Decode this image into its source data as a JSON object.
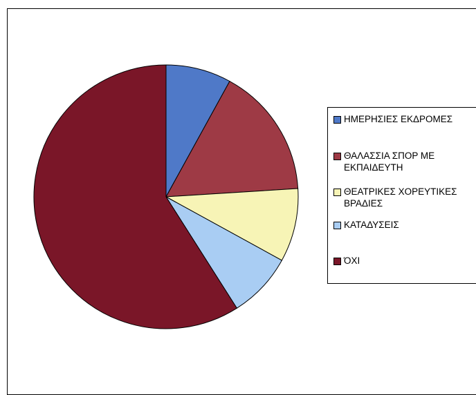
{
  "chart_data": {
    "type": "pie",
    "title": "",
    "legend_position": "right",
    "start_angle": "12 o'clock",
    "direction": "clockwise",
    "slices": [
      {
        "label": "ΗΜΕΡΗΣΙΕΣ ΕΚΔΡΟΜΕΣ",
        "value": 8,
        "color": "#4f79c8"
      },
      {
        "label": "ΘΑΛΑΣΣΙΑ ΣΠΟΡ ΜΕ ΕΚΠΑΙΔΕΥΤΗ",
        "value": 16,
        "color": "#9e3a45"
      },
      {
        "label": "ΘΕΑΤΡΙΚΕΣ ΧΟΡΕΥΤΙΚΕΣ ΒΡΑΔΙΕΣ",
        "value": 9,
        "color": "#f7f4b6"
      },
      {
        "label": "ΚΑΤΑΔΥΣΕΙΣ",
        "value": 8,
        "color": "#a9cdf3"
      },
      {
        "label": "ΌΧΙ",
        "value": 59,
        "color": "#7a1628"
      }
    ]
  }
}
